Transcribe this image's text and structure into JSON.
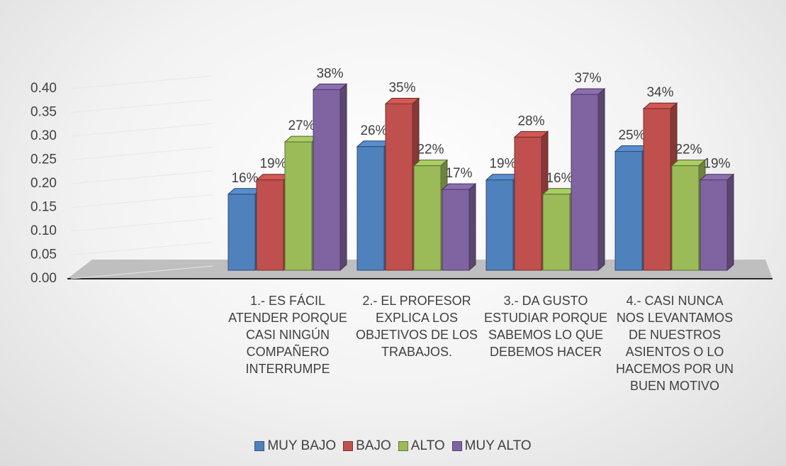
{
  "chart_data": {
    "type": "bar3d",
    "categories": [
      "1.- ES FÁCIL ATENDER PORQUE CASI NINGÚN COMPAÑERO INTERRUMPE",
      "2.- EL PROFESOR EXPLICA LOS OBJETIVOS DE LOS TRABAJOS.",
      "3.- DA GUSTO ESTUDIAR PORQUE SABEMOS LO QUE DEBEMOS HACER",
      "4.- CASI NUNCA NOS LEVANTAMOS DE NUESTROS ASIENTOS O LO HACEMOS POR UN BUEN MOTIVO"
    ],
    "series": [
      {
        "name": "MUY BAJO",
        "color": "#4f81bd",
        "values": [
          0.16,
          0.26,
          0.19,
          0.25
        ],
        "value_labels": [
          "16%",
          "26%",
          "19%",
          "25%"
        ]
      },
      {
        "name": "BAJO",
        "color": "#c0504d",
        "values": [
          0.19,
          0.35,
          0.28,
          0.34
        ],
        "value_labels": [
          "19%",
          "35%",
          "28%",
          "34%"
        ]
      },
      {
        "name": "ALTO",
        "color": "#9bbb59",
        "values": [
          0.27,
          0.22,
          0.16,
          0.22
        ],
        "value_labels": [
          "27%",
          "22%",
          "16%",
          "22%"
        ]
      },
      {
        "name": "MUY ALTO",
        "color": "#8064a2",
        "values": [
          0.38,
          0.17,
          0.37,
          0.19
        ],
        "value_labels": [
          "38%",
          "17%",
          "37%",
          "19%"
        ]
      }
    ],
    "ylim": [
      0,
      0.4
    ],
    "yticks": [
      {
        "value": 0,
        "label": "0.00"
      },
      0.05,
      {
        "value": 0.1,
        "label": "0.10"
      },
      0.15,
      {
        "value": 0.2,
        "label": "0.20"
      },
      0.25,
      {
        "value": 0.3,
        "label": "0.30"
      },
      0.35,
      {
        "value": 0.4,
        "label": "0.40"
      }
    ],
    "grid": true,
    "legend": "bottom"
  }
}
